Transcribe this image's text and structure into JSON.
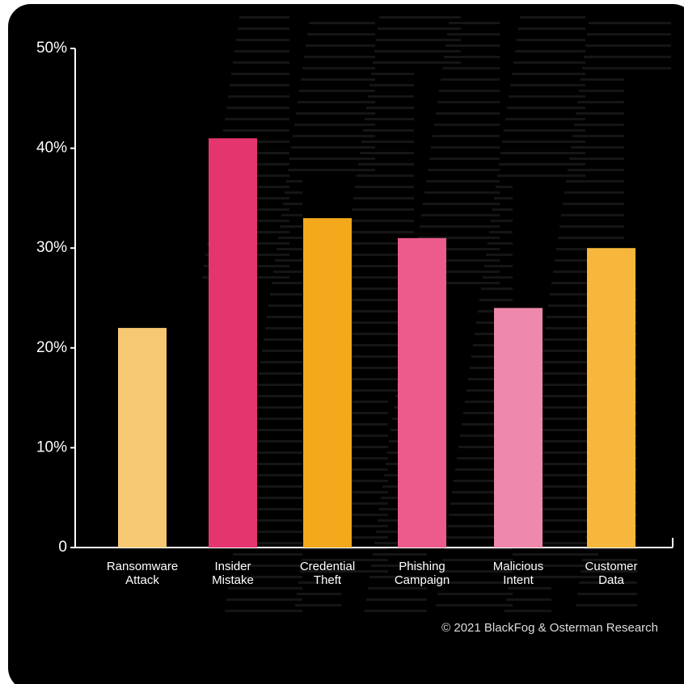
{
  "chart_data": {
    "type": "bar",
    "categories": [
      "Ransomware Attack",
      "Insider Mistake",
      "Credential Theft",
      "Phishing Campaign",
      "Malicious Intent",
      "Customer Data"
    ],
    "values": [
      22,
      41,
      33,
      31,
      24,
      30
    ],
    "colors": [
      "#f7c873",
      "#e5356f",
      "#f4a81c",
      "#ec5b8c",
      "#ef88ad",
      "#f6b73c"
    ],
    "ylim": [
      0,
      50
    ],
    "yticks": [
      0,
      {
        "value": 10,
        "label": "10%"
      },
      {
        "value": 20,
        "label": "20%"
      },
      {
        "value": 30,
        "label": "30%"
      },
      {
        "value": 40,
        "label": "40%"
      },
      {
        "value": 50,
        "label": "50%"
      }
    ],
    "source": "© 2021 BlackFog & Osterman Research"
  }
}
